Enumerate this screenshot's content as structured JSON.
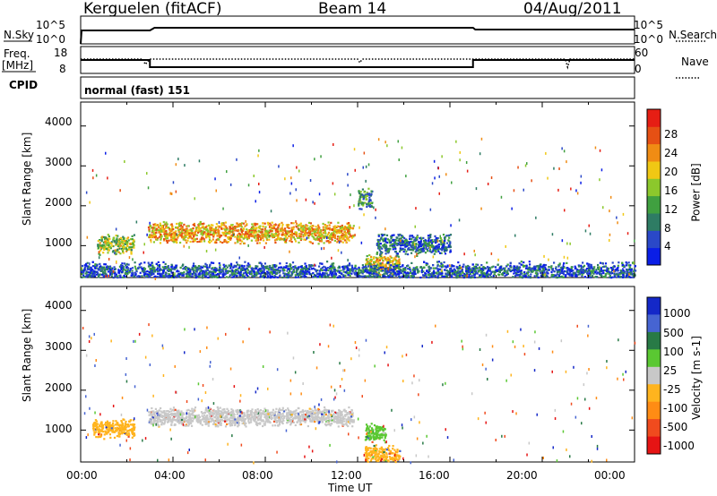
{
  "header": {
    "station": "Kerguelen (fitACF)",
    "beam": "Beam 14",
    "date": "04/Aug/2011"
  },
  "sky_panel": {
    "left_label": "N.Sky",
    "left_ticks": [
      "10^5",
      "10^0"
    ],
    "right_ticks": [
      "10^5",
      "10^0"
    ],
    "right_label": "N.Search"
  },
  "freq_panel": {
    "left_label_line1": "Freq.",
    "left_label_line2": "[MHz]",
    "left_ticks": [
      "18",
      "8"
    ],
    "right_ticks": [
      "60",
      "0"
    ],
    "right_label": "Nave"
  },
  "cpid": {
    "label": "CPID",
    "value": "normal (fast) 151"
  },
  "colors": {
    "power_scale": [
      "#0a1ee6",
      "#2a48c8",
      "#2e7c64",
      "#40a040",
      "#8cc82c",
      "#f0c814",
      "#f08c14",
      "#e65014",
      "#e61e14"
    ],
    "velocity_scale": [
      "#1428c8",
      "#4664d2",
      "#287a46",
      "#5ac832",
      "#c8c8c8",
      "#ffb41e",
      "#ff8c14",
      "#f04b1e",
      "#e61414"
    ]
  },
  "chart_data": [
    {
      "type": "heatmap",
      "name": "power",
      "ylabel": "Slant Range [km]",
      "ylim": [
        200,
        4600
      ],
      "y_ticks": [
        "1000",
        "2000",
        "3000",
        "4000"
      ],
      "colorbar_label": "Power [dB]",
      "colorbar_ticks": [
        "4",
        "8",
        "12",
        "16",
        "20",
        "24",
        "28"
      ],
      "features": [
        {
          "t_start": 0.7,
          "t_end": 2.3,
          "range_center": 1050,
          "value": 16
        },
        {
          "t_start": 2.9,
          "t_end": 11.8,
          "range_center": 1350,
          "value": 22
        },
        {
          "t_start": 12.0,
          "t_end": 12.6,
          "range_center": 2200,
          "value": 10
        },
        {
          "t_start": 12.3,
          "t_end": 13.8,
          "range_center": 550,
          "value": 20
        },
        {
          "t_start": 12.8,
          "t_end": 16.0,
          "range_center": 1050,
          "value": 6
        },
        {
          "t_start": 0.0,
          "t_end": 24.0,
          "range_center": 350,
          "value": 5
        }
      ]
    },
    {
      "type": "heatmap",
      "name": "velocity",
      "ylabel": "Slant Range [km]",
      "ylim": [
        200,
        4600
      ],
      "y_ticks": [
        "1000",
        "2000",
        "3000",
        "4000"
      ],
      "colorbar_label": "Velocity [m s-1]",
      "colorbar_ticks": [
        "1000",
        "500",
        "100",
        "25",
        "-25",
        "-100",
        "-500",
        "-1000"
      ],
      "x_ticks": [
        "00:00",
        "04:00",
        "08:00",
        "12:00",
        "16:00",
        "20:00",
        "00:00"
      ],
      "xlabel": "Time UT",
      "features": [
        {
          "t_start": 2.9,
          "t_end": 11.8,
          "range_center": 1350,
          "value": 0
        },
        {
          "t_start": 12.3,
          "t_end": 13.2,
          "range_center": 950,
          "value": 150
        },
        {
          "t_start": 0.5,
          "t_end": 2.3,
          "range_center": 1050,
          "value": -60
        },
        {
          "t_start": 12.3,
          "t_end": 13.8,
          "range_center": 400,
          "value": -40
        }
      ]
    }
  ]
}
